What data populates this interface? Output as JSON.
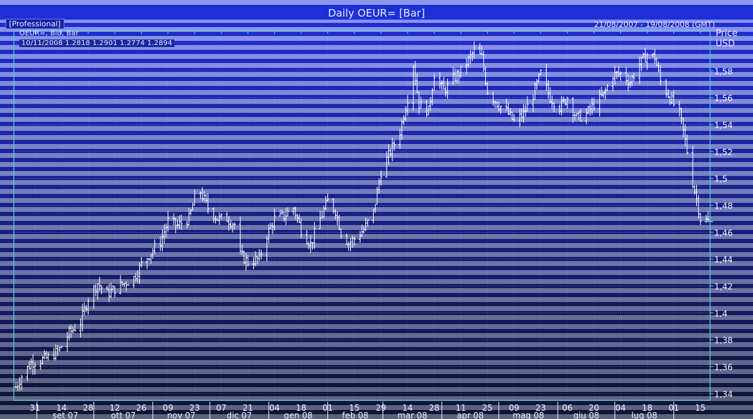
{
  "window": {
    "title": "Daily OEUR= [Bar]",
    "badge": "[Professional]",
    "date_range": "21/08/2007 - 19/08/2008 (GMT)"
  },
  "info": {
    "instrument": "OEUR=, Bid, Bar",
    "last_bar": "10/11/2008 1.2818 1.2901 1.2774 1.2894"
  },
  "colors": {
    "band_light": "#8c96f0",
    "band_dark": "#1f2fd8",
    "bars": "#ffffff",
    "frame": "#5fd0e0"
  },
  "chart_data": {
    "type": "bar",
    "subtype": "ohlc",
    "title": "Daily OEUR= [Bar]",
    "ylabel": "Price",
    "yunit": "USD",
    "ylim": [
      1.335,
      1.61
    ],
    "yticks": [
      {
        "value": 1.34,
        "label": "1,34"
      },
      {
        "value": 1.36,
        "label": "1,36"
      },
      {
        "value": 1.38,
        "label": "1,38"
      },
      {
        "value": 1.4,
        "label": "1,4"
      },
      {
        "value": 1.42,
        "label": "1,42"
      },
      {
        "value": 1.44,
        "label": "1,44"
      },
      {
        "value": 1.46,
        "label": "1,46"
      },
      {
        "value": 1.48,
        "label": "1,48"
      },
      {
        "value": 1.5,
        "label": "1,5"
      },
      {
        "value": 1.52,
        "label": "1,52"
      },
      {
        "value": 1.54,
        "label": "1,54"
      },
      {
        "value": 1.56,
        "label": "1,56"
      },
      {
        "value": 1.58,
        "label": "1,58"
      }
    ],
    "xdomain": [
      "2007-08-21",
      "2008-08-19"
    ],
    "xticks_day": [
      {
        "date": "2007-08-31",
        "label": "31"
      },
      {
        "date": "2007-09-14",
        "label": "14"
      },
      {
        "date": "2007-09-28",
        "label": "28"
      },
      {
        "date": "2007-10-12",
        "label": "12"
      },
      {
        "date": "2007-10-26",
        "label": "26"
      },
      {
        "date": "2007-11-09",
        "label": "09"
      },
      {
        "date": "2007-11-23",
        "label": "23"
      },
      {
        "date": "2007-12-07",
        "label": "07"
      },
      {
        "date": "2007-12-21",
        "label": "21"
      },
      {
        "date": "2008-01-04",
        "label": "04"
      },
      {
        "date": "2008-01-18",
        "label": "18"
      },
      {
        "date": "2008-02-01",
        "label": "01"
      },
      {
        "date": "2008-02-15",
        "label": "15"
      },
      {
        "date": "2008-02-29",
        "label": "29"
      },
      {
        "date": "2008-03-14",
        "label": "14"
      },
      {
        "date": "2008-03-28",
        "label": "28"
      },
      {
        "date": "2008-04-11",
        "label": "11"
      },
      {
        "date": "2008-04-25",
        "label": "25"
      },
      {
        "date": "2008-05-09",
        "label": "09"
      },
      {
        "date": "2008-05-23",
        "label": "23"
      },
      {
        "date": "2008-06-06",
        "label": "06"
      },
      {
        "date": "2008-06-20",
        "label": "20"
      },
      {
        "date": "2008-07-04",
        "label": "04"
      },
      {
        "date": "2008-07-18",
        "label": "18"
      },
      {
        "date": "2008-08-01",
        "label": "01"
      },
      {
        "date": "2008-08-15",
        "label": "15"
      }
    ],
    "xticks_month": [
      {
        "start": "2007-09-01",
        "label": "set 07"
      },
      {
        "start": "2007-10-01",
        "label": "ott 07"
      },
      {
        "start": "2007-11-01",
        "label": "nov 07"
      },
      {
        "start": "2007-12-01",
        "label": "dic 07"
      },
      {
        "start": "2008-01-01",
        "label": "gen 08"
      },
      {
        "start": "2008-02-01",
        "label": "feb 08"
      },
      {
        "start": "2008-03-01",
        "label": "mar 08"
      },
      {
        "start": "2008-04-01",
        "label": "apr 08"
      },
      {
        "start": "2008-05-01",
        "label": "mag 08"
      },
      {
        "start": "2008-06-01",
        "label": "giu 08"
      },
      {
        "start": "2008-07-01",
        "label": "lug 08"
      },
      {
        "start": "2008-08-01",
        "label": ""
      }
    ],
    "close_path": [
      {
        "date": "2007-08-21",
        "close": 1.345
      },
      {
        "date": "2007-08-24",
        "close": 1.353
      },
      {
        "date": "2007-08-29",
        "close": 1.363
      },
      {
        "date": "2007-09-03",
        "close": 1.365
      },
      {
        "date": "2007-09-08",
        "close": 1.367
      },
      {
        "date": "2007-09-13",
        "close": 1.373
      },
      {
        "date": "2007-09-18",
        "close": 1.385
      },
      {
        "date": "2007-09-24",
        "close": 1.393
      },
      {
        "date": "2007-09-28",
        "close": 1.411
      },
      {
        "date": "2007-10-03",
        "close": 1.422
      },
      {
        "date": "2007-10-08",
        "close": 1.414
      },
      {
        "date": "2007-10-12",
        "close": 1.418
      },
      {
        "date": "2007-10-17",
        "close": 1.422
      },
      {
        "date": "2007-10-22",
        "close": 1.426
      },
      {
        "date": "2007-10-26",
        "close": 1.436
      },
      {
        "date": "2007-10-31",
        "close": 1.445
      },
      {
        "date": "2007-11-05",
        "close": 1.453
      },
      {
        "date": "2007-11-09",
        "close": 1.468
      },
      {
        "date": "2007-11-14",
        "close": 1.465
      },
      {
        "date": "2007-11-20",
        "close": 1.47
      },
      {
        "date": "2007-11-23",
        "close": 1.485
      },
      {
        "date": "2007-11-26",
        "close": 1.49
      },
      {
        "date": "2007-11-30",
        "close": 1.478
      },
      {
        "date": "2007-12-05",
        "close": 1.47
      },
      {
        "date": "2007-12-10",
        "close": 1.47
      },
      {
        "date": "2007-12-14",
        "close": 1.466
      },
      {
        "date": "2007-12-17",
        "close": 1.443
      },
      {
        "date": "2007-12-21",
        "close": 1.438
      },
      {
        "date": "2007-12-27",
        "close": 1.44
      },
      {
        "date": "2007-12-31",
        "close": 1.458
      },
      {
        "date": "2008-01-04",
        "close": 1.47
      },
      {
        "date": "2008-01-09",
        "close": 1.472
      },
      {
        "date": "2008-01-14",
        "close": 1.478
      },
      {
        "date": "2008-01-18",
        "close": 1.462
      },
      {
        "date": "2008-01-23",
        "close": 1.451
      },
      {
        "date": "2008-01-28",
        "close": 1.47
      },
      {
        "date": "2008-02-01",
        "close": 1.483
      },
      {
        "date": "2008-02-05",
        "close": 1.476
      },
      {
        "date": "2008-02-08",
        "close": 1.46
      },
      {
        "date": "2008-02-12",
        "close": 1.452
      },
      {
        "date": "2008-02-15",
        "close": 1.455
      },
      {
        "date": "2008-02-20",
        "close": 1.462
      },
      {
        "date": "2008-02-25",
        "close": 1.475
      },
      {
        "date": "2008-02-29",
        "close": 1.505
      },
      {
        "date": "2008-03-05",
        "close": 1.52
      },
      {
        "date": "2008-03-10",
        "close": 1.535
      },
      {
        "date": "2008-03-14",
        "close": 1.56
      },
      {
        "date": "2008-03-17",
        "close": 1.585
      },
      {
        "date": "2008-03-20",
        "close": 1.555
      },
      {
        "date": "2008-03-25",
        "close": 1.55
      },
      {
        "date": "2008-03-28",
        "close": 1.578
      },
      {
        "date": "2008-04-02",
        "close": 1.565
      },
      {
        "date": "2008-04-07",
        "close": 1.574
      },
      {
        "date": "2008-04-11",
        "close": 1.58
      },
      {
        "date": "2008-04-15",
        "close": 1.588
      },
      {
        "date": "2008-04-18",
        "close": 1.595
      },
      {
        "date": "2008-04-22",
        "close": 1.59
      },
      {
        "date": "2008-04-25",
        "close": 1.565
      },
      {
        "date": "2008-04-30",
        "close": 1.556
      },
      {
        "date": "2008-05-05",
        "close": 1.55
      },
      {
        "date": "2008-05-09",
        "close": 1.542
      },
      {
        "date": "2008-05-14",
        "close": 1.548
      },
      {
        "date": "2008-05-19",
        "close": 1.562
      },
      {
        "date": "2008-05-23",
        "close": 1.578
      },
      {
        "date": "2008-05-28",
        "close": 1.56
      },
      {
        "date": "2008-06-02",
        "close": 1.553
      },
      {
        "date": "2008-06-06",
        "close": 1.56
      },
      {
        "date": "2008-06-11",
        "close": 1.545
      },
      {
        "date": "2008-06-16",
        "close": 1.548
      },
      {
        "date": "2008-06-20",
        "close": 1.555
      },
      {
        "date": "2008-06-25",
        "close": 1.562
      },
      {
        "date": "2008-06-30",
        "close": 1.577
      },
      {
        "date": "2008-07-04",
        "close": 1.578
      },
      {
        "date": "2008-07-09",
        "close": 1.572
      },
      {
        "date": "2008-07-14",
        "close": 1.585
      },
      {
        "date": "2008-07-18",
        "close": 1.592
      },
      {
        "date": "2008-07-22",
        "close": 1.59
      },
      {
        "date": "2008-07-25",
        "close": 1.572
      },
      {
        "date": "2008-07-30",
        "close": 1.56
      },
      {
        "date": "2008-08-04",
        "close": 1.548
      },
      {
        "date": "2008-08-07",
        "close": 1.528
      },
      {
        "date": "2008-08-11",
        "close": 1.497
      },
      {
        "date": "2008-08-13",
        "close": 1.485
      },
      {
        "date": "2008-08-15",
        "close": 1.47
      },
      {
        "date": "2008-08-19",
        "close": 1.468
      }
    ]
  }
}
